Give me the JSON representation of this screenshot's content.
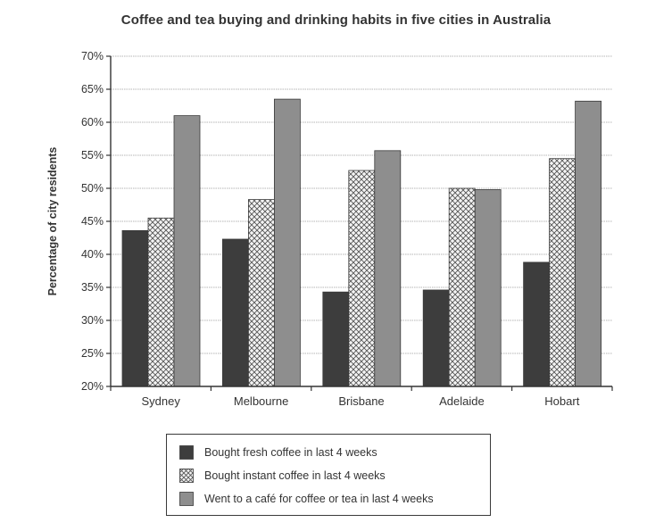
{
  "chart_data": {
    "type": "bar",
    "title": "Coffee and tea buying and drinking habits in five cities in Australia",
    "ylabel": "Percentage of city residents",
    "xlabel": "",
    "ylim": [
      20,
      70
    ],
    "yticks": [
      "20%",
      "25%",
      "30%",
      "35%",
      "40%",
      "45%",
      "50%",
      "55%",
      "60%",
      "65%",
      "70%"
    ],
    "grid": true,
    "legend_position": "bottom",
    "categories": [
      "Sydney",
      "Melbourne",
      "Brisbane",
      "Adelaide",
      "Hobart"
    ],
    "series": [
      {
        "name": "Bought fresh coffee in last 4 weeks",
        "values": [
          43.6,
          42.3,
          34.3,
          34.6,
          38.8
        ],
        "color": "#3d3d3d",
        "pattern": "solid"
      },
      {
        "name": "Bought instant coffee in last 4 weeks",
        "values": [
          45.5,
          48.3,
          52.7,
          50.0,
          54.5
        ],
        "color": "#f0f0f0",
        "pattern": "crosshatch"
      },
      {
        "name": "Went to a café for coffee or tea in last 4 weeks",
        "values": [
          61.0,
          63.5,
          55.7,
          49.8,
          63.2
        ],
        "color": "#8e8e8e",
        "pattern": "solid"
      }
    ]
  }
}
